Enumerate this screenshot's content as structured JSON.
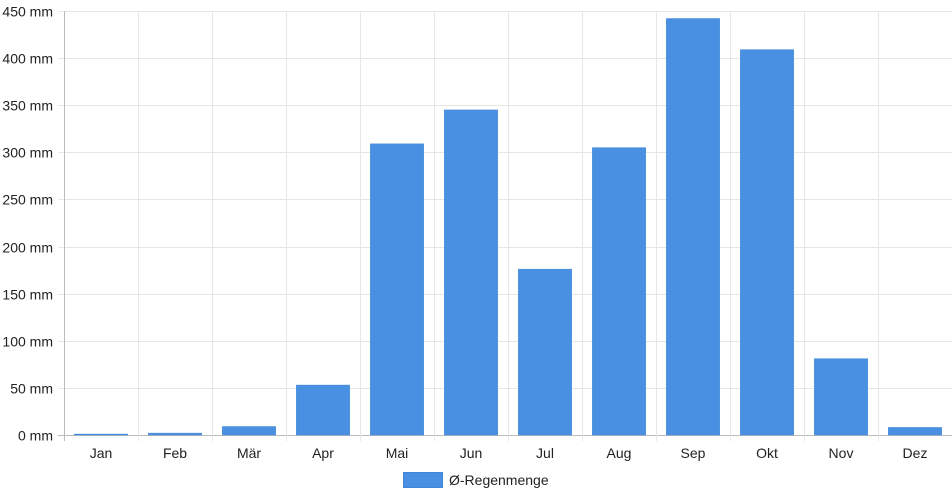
{
  "chart_data": {
    "type": "bar",
    "categories": [
      "Jan",
      "Feb",
      "Mär",
      "Apr",
      "Mai",
      "Jun",
      "Jul",
      "Aug",
      "Sep",
      "Okt",
      "Nov",
      "Dez"
    ],
    "series": [
      {
        "name": "Ø-Regenmenge",
        "values": [
          1,
          2,
          9,
          53,
          309,
          345,
          176,
          305,
          442,
          409,
          81,
          8
        ],
        "color": "#4a90e2"
      }
    ],
    "y_unit": "mm",
    "ylim": [
      0,
      450
    ],
    "y_ticks": [
      "0 mm",
      "50 mm",
      "100 mm",
      "150 mm",
      "200 mm",
      "250 mm",
      "300 mm",
      "350 mm",
      "400 mm",
      "450 mm"
    ],
    "grid": true,
    "legend_position": "bottom"
  }
}
